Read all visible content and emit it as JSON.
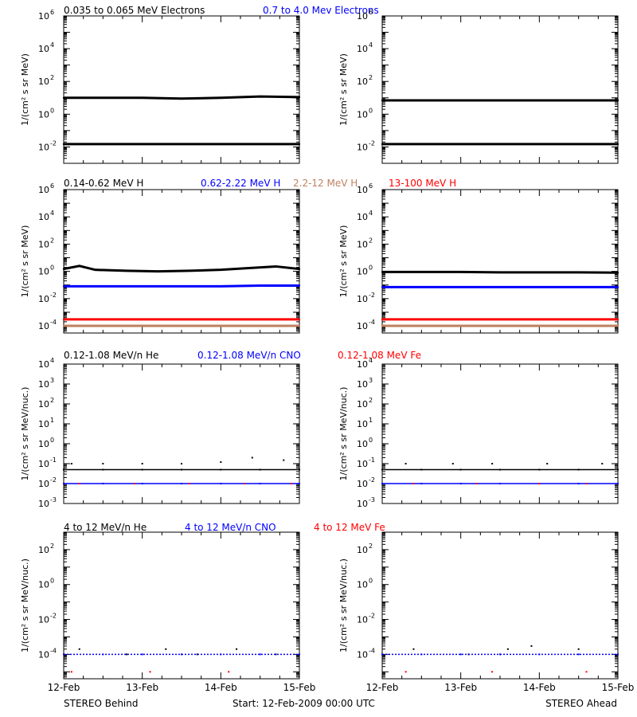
{
  "colors": {
    "black": "#000000",
    "blue": "#0000ff",
    "brown": "#c08060",
    "red": "#ff0000"
  },
  "footer": {
    "left": "STEREO Behind",
    "center": "Start: 12-Feb-2009 00:00 UTC",
    "right": "STEREO Ahead"
  },
  "chart_data": [
    {
      "type": "scatter",
      "panel": "electrons",
      "legend": [
        "0.035 to 0.065 MeV Electrons",
        "0.7 to 4.0 Mev Electrons"
      ],
      "ylabel": "1/(cm² s sr MeV)",
      "y_scale": "log",
      "ylim": [
        0.001,
        1000000
      ],
      "yticks": [
        0.01,
        1,
        100,
        10000,
        1000000
      ],
      "x_ticks": [
        "12-Feb",
        "13-Feb",
        "14-Feb",
        "15-Feb"
      ],
      "xlim": [
        0,
        3
      ],
      "behind": {
        "series": [
          {
            "name": "0.035 to 0.065 MeV Electrons",
            "x": [
              0,
              0.5,
              1.0,
              1.5,
              2.0,
              2.5,
              3.0
            ],
            "y": [
              10,
              10,
              10,
              9,
              10,
              12,
              11
            ]
          },
          {
            "name": "0.7 to 4.0 Mev Electrons",
            "x": [
              0,
              0.5,
              1.0,
              1.5,
              2.0,
              2.5,
              3.0
            ],
            "y": [
              0.015,
              0.015,
              0.015,
              0.015,
              0.015,
              0.015,
              0.015
            ]
          }
        ]
      },
      "ahead": {
        "series": [
          {
            "name": "0.035 to 0.065 MeV Electrons",
            "x": [
              0,
              0.5,
              1.0,
              1.5,
              2.0,
              2.5,
              3.0
            ],
            "y": [
              7,
              7,
              7,
              7,
              7,
              7,
              7
            ]
          },
          {
            "name": "0.7 to 4.0 Mev Electrons",
            "x": [
              0,
              0.5,
              1.0,
              1.5,
              2.0,
              2.5,
              3.0
            ],
            "y": [
              0.015,
              0.015,
              0.015,
              0.015,
              0.015,
              0.015,
              0.015
            ]
          }
        ]
      }
    },
    {
      "type": "scatter",
      "panel": "protons",
      "legend": [
        "0.14-0.62 MeV H",
        "0.62-2.22 MeV H",
        "2.2-12 MeV H",
        "13-100 MeV H"
      ],
      "ylabel": "1/(cm² s sr MeV)",
      "y_scale": "log",
      "ylim": [
        3e-05,
        1000000
      ],
      "yticks": [
        0.0001,
        0.01,
        1,
        100,
        10000,
        1000000
      ],
      "x_ticks": [
        "12-Feb",
        "13-Feb",
        "14-Feb",
        "15-Feb"
      ],
      "xlim": [
        0,
        3
      ],
      "behind": {
        "series": [
          {
            "name": "0.14-0.62 MeV H",
            "x": [
              0,
              0.2,
              0.4,
              0.8,
              1.2,
              1.6,
              2.0,
              2.4,
              2.7,
              3.0
            ],
            "y": [
              1.5,
              2.5,
              1.3,
              1.1,
              1.0,
              1.1,
              1.3,
              1.8,
              2.3,
              1.5
            ]
          },
          {
            "name": "0.62-2.22 MeV H",
            "x": [
              0,
              0.5,
              1.0,
              1.5,
              2.0,
              2.5,
              3.0
            ],
            "y": [
              0.08,
              0.08,
              0.08,
              0.08,
              0.08,
              0.09,
              0.09
            ]
          },
          {
            "name": "2.2-12 MeV H",
            "x": [
              0,
              0.5,
              1.0,
              1.5,
              2.0,
              2.5,
              3.0
            ],
            "y": [
              0.0001,
              0.0001,
              0.0001,
              0.0001,
              0.0001,
              0.0001,
              0.0001
            ]
          },
          {
            "name": "13-100 MeV H",
            "x": [
              0,
              0.5,
              1.0,
              1.5,
              2.0,
              2.5,
              3.0
            ],
            "y": [
              0.0003,
              0.0003,
              0.0003,
              0.0003,
              0.0003,
              0.0003,
              0.0003
            ]
          }
        ]
      },
      "ahead": {
        "series": [
          {
            "name": "0.14-0.62 MeV H",
            "x": [
              0,
              0.5,
              1.0,
              1.5,
              2.0,
              2.5,
              3.0
            ],
            "y": [
              0.9,
              0.9,
              0.9,
              0.85,
              0.85,
              0.85,
              0.8
            ]
          },
          {
            "name": "0.62-2.22 MeV H",
            "x": [
              0,
              0.5,
              1.0,
              1.5,
              2.0,
              2.5,
              3.0
            ],
            "y": [
              0.07,
              0.07,
              0.07,
              0.07,
              0.07,
              0.07,
              0.07
            ]
          },
          {
            "name": "2.2-12 MeV H",
            "x": [
              0,
              0.5,
              1.0,
              1.5,
              2.0,
              2.5,
              3.0
            ],
            "y": [
              0.0001,
              0.0001,
              0.0001,
              0.0001,
              0.0001,
              0.0001,
              0.0001
            ]
          },
          {
            "name": "13-100 MeV H",
            "x": [
              0,
              0.5,
              1.0,
              1.5,
              2.0,
              2.5,
              3.0
            ],
            "y": [
              0.0003,
              0.0003,
              0.0003,
              0.0003,
              0.0003,
              0.0003,
              0.0003
            ]
          }
        ]
      }
    },
    {
      "type": "scatter",
      "panel": "heavy-ions-low",
      "legend": [
        "0.12-1.08 MeV/n He",
        "0.12-1.08 MeV/n CNO",
        "0.12-1.08 MeV Fe"
      ],
      "ylabel": "1/(cm² s sr MeV/nuc.)",
      "y_scale": "log",
      "ylim": [
        0.001,
        10000
      ],
      "yticks": [
        0.001,
        0.01,
        0.1,
        1,
        10,
        100,
        1000,
        10000
      ],
      "x_ticks": [
        "12-Feb",
        "13-Feb",
        "14-Feb",
        "15-Feb"
      ],
      "xlim": [
        0,
        3
      ],
      "behind": {
        "series": [
          {
            "name": "0.12-1.08 MeV/n He",
            "x": [
              0,
              0.5,
              1.0,
              1.5,
              2.0,
              2.5,
              3.0
            ],
            "y": [
              0.05,
              0.05,
              0.05,
              0.05,
              0.05,
              0.05,
              0.05
            ]
          },
          {
            "name": "0.12-1.08 MeV/n He (upper)",
            "x": [
              0.1,
              0.5,
              1.0,
              1.5,
              2.0,
              2.4,
              2.8
            ],
            "y": [
              0.1,
              0.1,
              0.1,
              0.1,
              0.12,
              0.2,
              0.15
            ]
          },
          {
            "name": "0.12-1.08 MeV/n CNO",
            "x": [
              0,
              0.5,
              1.0,
              1.5,
              2.0,
              2.5,
              3.0
            ],
            "y": [
              0.01,
              0.01,
              0.01,
              0.01,
              0.01,
              0.01,
              0.01
            ]
          },
          {
            "name": "0.12-1.08 MeV Fe",
            "x": [
              0.2,
              0.9,
              1.6,
              2.3,
              2.9
            ],
            "y": [
              0.01,
              0.01,
              0.01,
              0.01,
              0.01
            ]
          }
        ]
      },
      "ahead": {
        "series": [
          {
            "name": "0.12-1.08 MeV/n He",
            "x": [
              0,
              0.5,
              1.0,
              1.5,
              2.0,
              2.5,
              3.0
            ],
            "y": [
              0.05,
              0.05,
              0.05,
              0.05,
              0.05,
              0.05,
              0.05
            ]
          },
          {
            "name": "0.12-1.08 MeV/n He (upper)",
            "x": [
              0.3,
              0.9,
              1.4,
              2.1,
              2.8
            ],
            "y": [
              0.1,
              0.1,
              0.1,
              0.1,
              0.1
            ]
          },
          {
            "name": "0.12-1.08 MeV/n CNO",
            "x": [
              0,
              0.5,
              1.0,
              1.5,
              2.0,
              2.5,
              3.0
            ],
            "y": [
              0.01,
              0.01,
              0.01,
              0.01,
              0.01,
              0.01,
              0.01
            ]
          },
          {
            "name": "0.12-1.08 MeV Fe",
            "x": [
              0.4,
              1.2,
              2.0,
              2.6
            ],
            "y": [
              0.01,
              0.01,
              0.01,
              0.01
            ]
          }
        ]
      }
    },
    {
      "type": "scatter",
      "panel": "heavy-ions-high",
      "legend": [
        "4 to 12 MeV/n He",
        "4 to 12 MeV/n CNO",
        "4 to 12 MeV Fe"
      ],
      "ylabel": "1/(cm² s sr MeV/nuc.)",
      "y_scale": "log",
      "ylim": [
        4e-06,
        1000
      ],
      "yticks": [
        0.0001,
        0.01,
        1,
        100
      ],
      "x_ticks": [
        "12-Feb",
        "13-Feb",
        "14-Feb",
        "15-Feb"
      ],
      "xlim": [
        0,
        3
      ],
      "behind": {
        "series": [
          {
            "name": "4 to 12 MeV/n He",
            "x": [
              0.2,
              0.8,
              1.3,
              1.7,
              2.2,
              2.7
            ],
            "y": [
              0.0002,
              0.0001,
              0.0002,
              0.0001,
              0.0002,
              0.0001
            ]
          },
          {
            "name": "4 to 12 MeV/n CNO",
            "x": [
              0,
              0.5,
              1.0,
              1.5,
              2.0,
              2.5,
              3.0
            ],
            "y": [
              0.0001,
              0.0001,
              0.0001,
              0.0001,
              0.0001,
              0.0001,
              0.0001
            ]
          },
          {
            "name": "4 to 12 MeV Fe",
            "x": [
              0.1,
              1.1,
              2.1
            ],
            "y": [
              1e-05,
              1e-05,
              1e-05
            ]
          }
        ]
      },
      "ahead": {
        "series": [
          {
            "name": "4 to 12 MeV/n He",
            "x": [
              0.4,
              1.1,
              1.6,
              1.9,
              2.5
            ],
            "y": [
              0.0002,
              0.0001,
              0.0002,
              0.0003,
              0.0002
            ]
          },
          {
            "name": "4 to 12 MeV/n CNO",
            "x": [
              0,
              0.5,
              1.0,
              1.5,
              2.0,
              2.5,
              3.0
            ],
            "y": [
              0.0001,
              0.0001,
              0.0001,
              0.0001,
              0.0001,
              0.0001,
              0.0001
            ]
          },
          {
            "name": "4 to 12 MeV Fe",
            "x": [
              0.3,
              1.4,
              2.6
            ],
            "y": [
              1e-05,
              1e-05,
              1e-05
            ]
          }
        ]
      }
    }
  ]
}
